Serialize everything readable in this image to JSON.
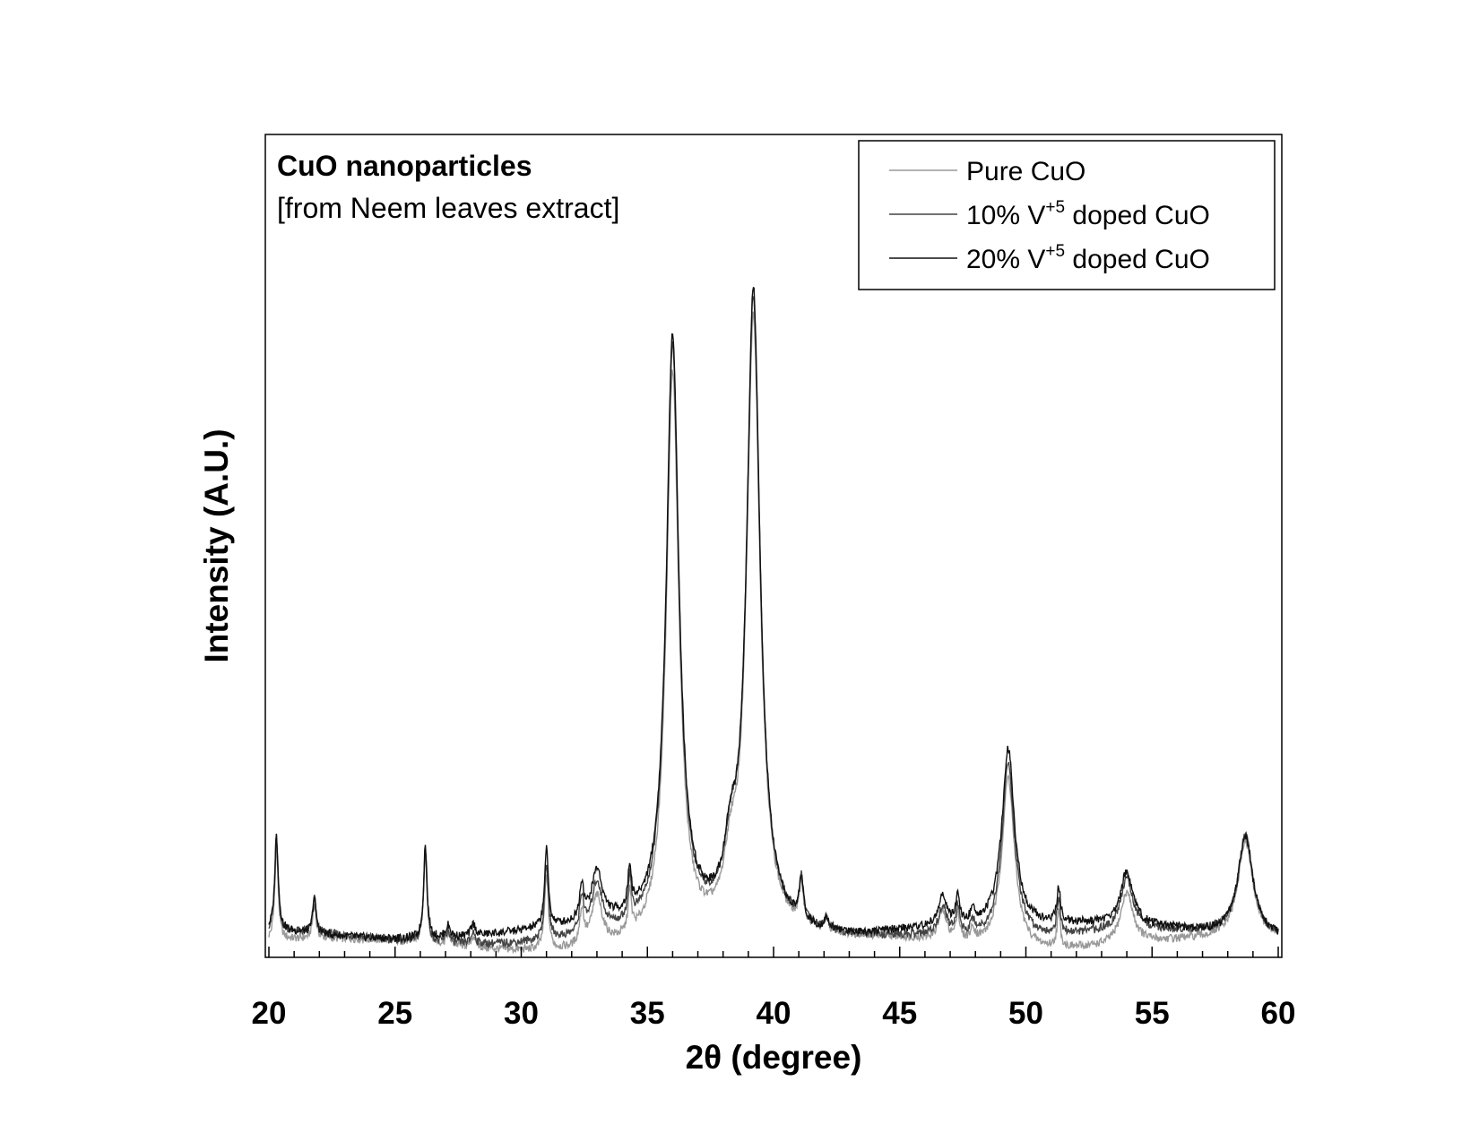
{
  "chart_data": {
    "type": "line",
    "xlabel": "2θ (degree)",
    "ylabel": "Intensity (A.U.)",
    "xlim": [
      20,
      60
    ],
    "ylim": [
      0,
      1
    ],
    "xticks": [
      20,
      25,
      30,
      35,
      40,
      45,
      50,
      55,
      60
    ],
    "grid": false,
    "legend_position": "top-right",
    "annotation": {
      "title": "CuO nanoparticles",
      "subtitle": "[from Neem leaves extract]"
    },
    "peaks": [
      {
        "x": 20.3,
        "height": 0.16,
        "width": 0.08
      },
      {
        "x": 21.8,
        "height": 0.06,
        "width": 0.08
      },
      {
        "x": 26.2,
        "height": 0.16,
        "width": 0.08
      },
      {
        "x": 27.1,
        "height": 0.02,
        "width": 0.1
      },
      {
        "x": 28.1,
        "height": 0.02,
        "width": 0.1
      },
      {
        "x": 31.0,
        "height": 0.13,
        "width": 0.09
      },
      {
        "x": 32.4,
        "height": 0.06,
        "width": 0.1
      },
      {
        "x": 33.0,
        "height": 0.085,
        "width": 0.25
      },
      {
        "x": 34.3,
        "height": 0.07,
        "width": 0.08
      },
      {
        "x": 36.0,
        "height": 0.99,
        "width": 0.3
      },
      {
        "x": 38.3,
        "height": 0.09,
        "width": 0.3
      },
      {
        "x": 39.2,
        "height": 1.07,
        "width": 0.32
      },
      {
        "x": 41.1,
        "height": 0.07,
        "width": 0.1
      },
      {
        "x": 42.1,
        "height": 0.02,
        "width": 0.1
      },
      {
        "x": 46.7,
        "height": 0.05,
        "width": 0.2
      },
      {
        "x": 47.3,
        "height": 0.05,
        "width": 0.08
      },
      {
        "x": 47.9,
        "height": 0.02,
        "width": 0.12
      },
      {
        "x": 49.3,
        "height": 0.3,
        "width": 0.3
      },
      {
        "x": 51.3,
        "height": 0.06,
        "width": 0.08
      },
      {
        "x": 54.0,
        "height": 0.09,
        "width": 0.3
      },
      {
        "x": 58.7,
        "height": 0.17,
        "width": 0.35
      }
    ],
    "series": [
      {
        "name": "Pure CuO",
        "color": "#999999",
        "baseline": 0.012,
        "peak_scale": 0.97
      },
      {
        "name": "10% V+5 doped CuO",
        "color": "#444444",
        "baseline": 0.025,
        "peak_scale": 0.99
      },
      {
        "name": "20% V+5 doped CuO",
        "color": "#111111",
        "baseline": 0.035,
        "peak_scale": 1.0
      }
    ]
  },
  "legend": {
    "items": [
      {
        "prefix": "Pure CuO",
        "sup": "",
        "suffix": ""
      },
      {
        "prefix": "10% V",
        "sup": "+5",
        "suffix": " doped CuO"
      },
      {
        "prefix": "20% V",
        "sup": "+5",
        "suffix": " doped CuO"
      }
    ]
  }
}
